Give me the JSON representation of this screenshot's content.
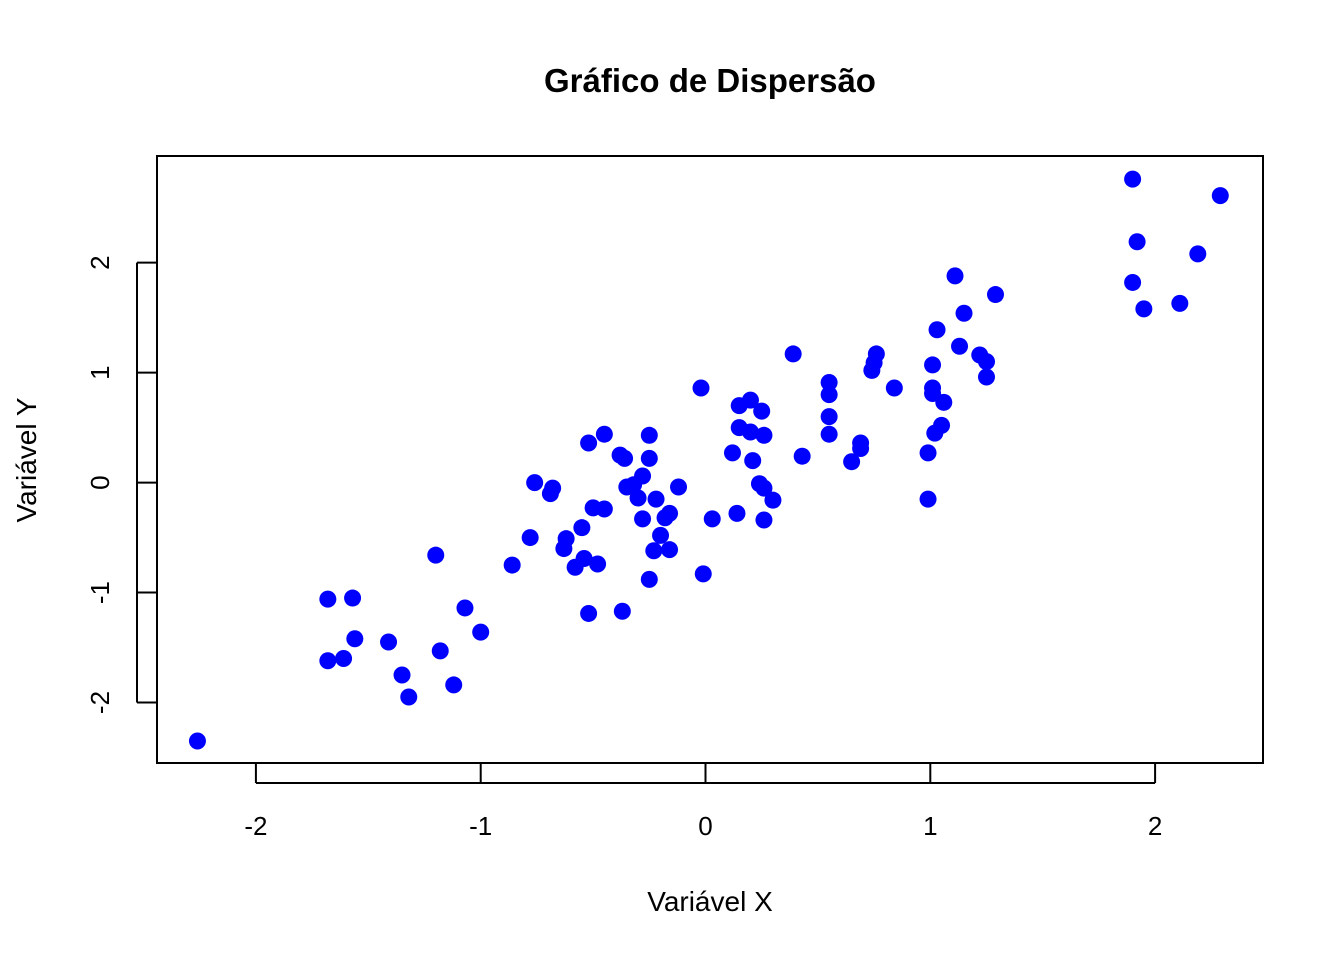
{
  "chart_data": {
    "type": "scatter",
    "title": "Gráfico de Dispersão",
    "xlabel": "Variável X",
    "ylabel": "Variável Y",
    "xlim": [
      -2.44,
      2.48
    ],
    "ylim": [
      -2.55,
      2.97
    ],
    "xticks": [
      -2,
      -1,
      0,
      1,
      2
    ],
    "yticks": [
      -2,
      -1,
      0,
      1,
      2
    ],
    "xtick_labels": [
      "-2",
      "-1",
      "0",
      "1",
      "2"
    ],
    "ytick_labels": [
      "-2",
      "-1",
      "0",
      "1",
      "2"
    ],
    "grid": false,
    "marker_color": "#0000ff",
    "points": [
      {
        "x": -2.26,
        "y": -2.35
      },
      {
        "x": -1.68,
        "y": -1.06
      },
      {
        "x": -1.68,
        "y": -1.62
      },
      {
        "x": -1.61,
        "y": -1.6
      },
      {
        "x": -1.57,
        "y": -1.05
      },
      {
        "x": -1.56,
        "y": -1.42
      },
      {
        "x": -1.41,
        "y": -1.45
      },
      {
        "x": -1.35,
        "y": -1.75
      },
      {
        "x": -1.32,
        "y": -1.95
      },
      {
        "x": -1.2,
        "y": -0.66
      },
      {
        "x": -1.18,
        "y": -1.53
      },
      {
        "x": -1.12,
        "y": -1.84
      },
      {
        "x": -1.07,
        "y": -1.14
      },
      {
        "x": -1.0,
        "y": -1.36
      },
      {
        "x": -0.86,
        "y": -0.75
      },
      {
        "x": -0.78,
        "y": -0.5
      },
      {
        "x": -0.76,
        "y": 0.0
      },
      {
        "x": -0.69,
        "y": -0.1
      },
      {
        "x": -0.68,
        "y": -0.05
      },
      {
        "x": -0.63,
        "y": -0.6
      },
      {
        "x": -0.62,
        "y": -0.51
      },
      {
        "x": -0.58,
        "y": -0.77
      },
      {
        "x": -0.55,
        "y": -0.41
      },
      {
        "x": -0.54,
        "y": -0.69
      },
      {
        "x": -0.52,
        "y": 0.36
      },
      {
        "x": -0.52,
        "y": -1.19
      },
      {
        "x": -0.5,
        "y": -0.23
      },
      {
        "x": -0.48,
        "y": -0.74
      },
      {
        "x": -0.45,
        "y": -0.24
      },
      {
        "x": -0.45,
        "y": 0.44
      },
      {
        "x": -0.38,
        "y": 0.25
      },
      {
        "x": -0.37,
        "y": -1.17
      },
      {
        "x": -0.36,
        "y": 0.22
      },
      {
        "x": -0.35,
        "y": -0.04
      },
      {
        "x": -0.32,
        "y": -0.02
      },
      {
        "x": -0.3,
        "y": -0.14
      },
      {
        "x": -0.28,
        "y": -0.33
      },
      {
        "x": -0.28,
        "y": 0.06
      },
      {
        "x": -0.25,
        "y": -0.88
      },
      {
        "x": -0.25,
        "y": 0.43
      },
      {
        "x": -0.25,
        "y": 0.22
      },
      {
        "x": -0.23,
        "y": -0.62
      },
      {
        "x": -0.22,
        "y": -0.15
      },
      {
        "x": -0.2,
        "y": -0.48
      },
      {
        "x": -0.18,
        "y": -0.32
      },
      {
        "x": -0.16,
        "y": -0.28
      },
      {
        "x": -0.16,
        "y": -0.61
      },
      {
        "x": -0.12,
        "y": -0.04
      },
      {
        "x": -0.02,
        "y": 0.86
      },
      {
        "x": -0.01,
        "y": -0.83
      },
      {
        "x": 0.03,
        "y": -0.33
      },
      {
        "x": 0.12,
        "y": 0.27
      },
      {
        "x": 0.14,
        "y": -0.28
      },
      {
        "x": 0.15,
        "y": 0.7
      },
      {
        "x": 0.15,
        "y": 0.5
      },
      {
        "x": 0.2,
        "y": 0.75
      },
      {
        "x": 0.2,
        "y": 0.46
      },
      {
        "x": 0.21,
        "y": 0.2
      },
      {
        "x": 0.24,
        "y": -0.01
      },
      {
        "x": 0.25,
        "y": 0.65
      },
      {
        "x": 0.26,
        "y": -0.05
      },
      {
        "x": 0.26,
        "y": 0.43
      },
      {
        "x": 0.26,
        "y": -0.34
      },
      {
        "x": 0.3,
        "y": -0.16
      },
      {
        "x": 0.39,
        "y": 1.17
      },
      {
        "x": 0.43,
        "y": 0.24
      },
      {
        "x": 0.55,
        "y": 0.91
      },
      {
        "x": 0.55,
        "y": 0.8
      },
      {
        "x": 0.55,
        "y": 0.6
      },
      {
        "x": 0.55,
        "y": 0.44
      },
      {
        "x": 0.65,
        "y": 0.19
      },
      {
        "x": 0.69,
        "y": 0.36
      },
      {
        "x": 0.69,
        "y": 0.31
      },
      {
        "x": 0.74,
        "y": 1.02
      },
      {
        "x": 0.75,
        "y": 1.09
      },
      {
        "x": 0.76,
        "y": 1.17
      },
      {
        "x": 0.84,
        "y": 0.86
      },
      {
        "x": 0.99,
        "y": 0.27
      },
      {
        "x": 0.99,
        "y": -0.15
      },
      {
        "x": 1.01,
        "y": 1.07
      },
      {
        "x": 1.01,
        "y": 0.86
      },
      {
        "x": 1.01,
        "y": 0.81
      },
      {
        "x": 1.02,
        "y": 0.45
      },
      {
        "x": 1.03,
        "y": 1.39
      },
      {
        "x": 1.05,
        "y": 0.52
      },
      {
        "x": 1.06,
        "y": 0.73
      },
      {
        "x": 1.11,
        "y": 1.88
      },
      {
        "x": 1.13,
        "y": 1.24
      },
      {
        "x": 1.15,
        "y": 1.54
      },
      {
        "x": 1.22,
        "y": 1.16
      },
      {
        "x": 1.25,
        "y": 1.1
      },
      {
        "x": 1.25,
        "y": 0.96
      },
      {
        "x": 1.29,
        "y": 1.71
      },
      {
        "x": 1.9,
        "y": 2.76
      },
      {
        "x": 1.9,
        "y": 1.82
      },
      {
        "x": 1.92,
        "y": 2.19
      },
      {
        "x": 1.95,
        "y": 1.58
      },
      {
        "x": 2.11,
        "y": 1.63
      },
      {
        "x": 2.19,
        "y": 2.08
      },
      {
        "x": 2.29,
        "y": 2.61
      }
    ]
  }
}
